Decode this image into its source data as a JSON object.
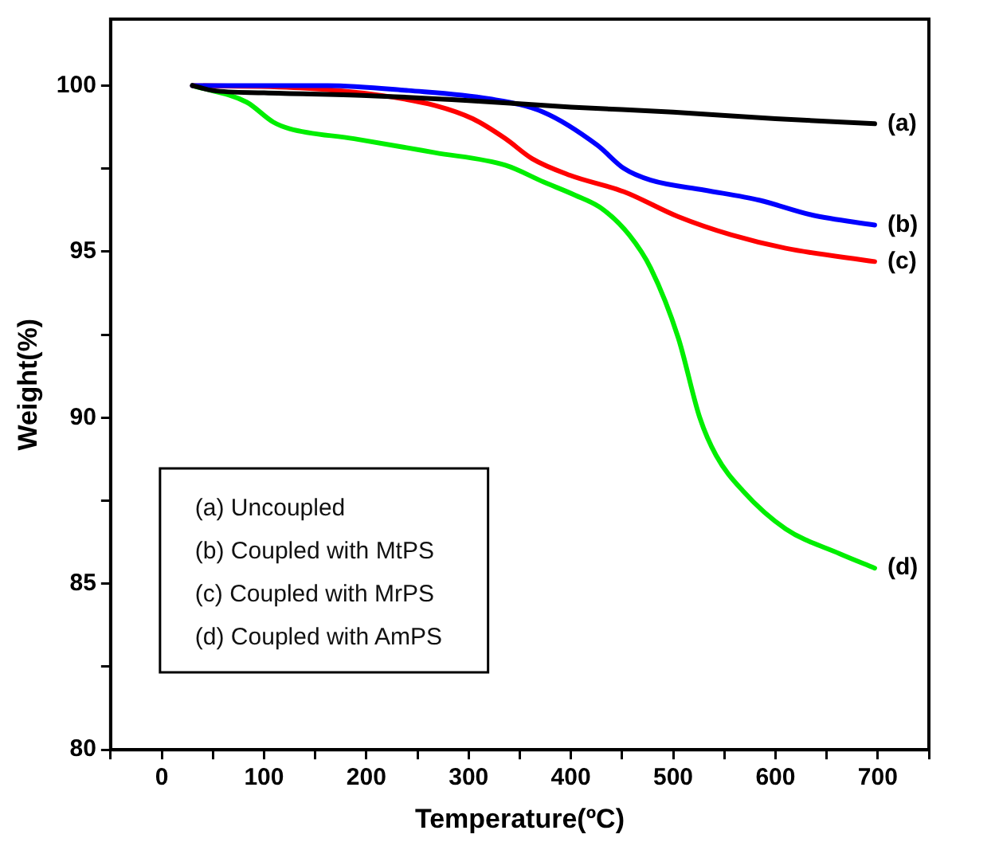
{
  "chart_data": {
    "type": "line",
    "xlabel": "Temperature(ºC)",
    "ylabel": "Weight(%)",
    "xlim": [
      -50,
      750
    ],
    "ylim": [
      80,
      102
    ],
    "xticks": [
      {
        "value": -50,
        "label": null
      },
      0,
      {
        "value": 50,
        "label": null
      },
      100,
      {
        "value": 150,
        "label": null
      },
      200,
      {
        "value": 250,
        "label": null
      },
      300,
      {
        "value": 350,
        "label": null
      },
      400,
      {
        "value": 450,
        "label": null
      },
      500,
      {
        "value": 550,
        "label": null
      },
      600,
      {
        "value": 650,
        "label": null
      },
      700,
      {
        "value": 750,
        "label": null
      }
    ],
    "yticks": [
      80,
      {
        "value": 82.5,
        "label": null
      },
      85,
      {
        "value": 87.5,
        "label": null
      },
      90,
      {
        "value": 92.5,
        "label": null
      },
      95,
      {
        "value": 97.5,
        "label": null
      },
      100
    ],
    "grid": false,
    "legend": false,
    "marker": "none",
    "line_style": "solid",
    "annotations": [
      "(a) Uncoupled",
      "(b) Coupled with MtPS",
      "(c) Coupled with MrPS",
      "(d) Coupled with AmPS"
    ],
    "series": [
      {
        "name": "(a)",
        "color": "#000000",
        "x": [
          30,
          50,
          100,
          200,
          300,
          400,
          500,
          600,
          697
        ],
        "values": [
          100,
          99.85,
          99.78,
          99.7,
          99.55,
          99.35,
          99.2,
          99.0,
          98.85
        ]
      },
      {
        "name": "(b)",
        "color": "#0000ff",
        "x": [
          30,
          100,
          162,
          241,
          320,
          373,
          426,
          452,
          478,
          531,
          584,
          636,
          697
        ],
        "values": [
          100,
          100,
          100,
          99.85,
          99.6,
          99.2,
          98.2,
          97.5,
          97.15,
          96.85,
          96.55,
          96.1,
          95.8
        ]
      },
      {
        "name": "(c)",
        "color": "#ff0000",
        "x": [
          30,
          135,
          215,
          267,
          304,
          336,
          362,
          399,
          452,
          505,
          557,
          610,
          697
        ],
        "values": [
          100,
          99.93,
          99.7,
          99.4,
          99.0,
          98.4,
          97.8,
          97.3,
          96.8,
          96.05,
          95.5,
          95.1,
          94.7
        ]
      },
      {
        "name": "(d)",
        "color": "#00ee00",
        "x": [
          30,
          83,
          109,
          125,
          188,
          267,
          336,
          373,
          404,
          430,
          457,
          478,
          505,
          526,
          542,
          568,
          610,
          663,
          697
        ],
        "values": [
          100,
          99.5,
          98.9,
          98.7,
          98.4,
          97.98,
          97.6,
          97.1,
          96.7,
          96.3,
          95.5,
          94.5,
          92.4,
          90,
          88.86,
          87.8,
          86.65,
          85.9,
          85.47
        ]
      }
    ]
  }
}
